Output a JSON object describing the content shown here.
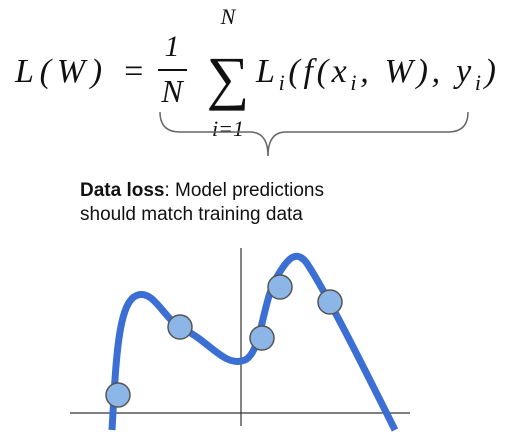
{
  "formula": {
    "lhs": "L(W) =",
    "numerator": "1",
    "denominator": "N",
    "sum_symbol": "∑",
    "sum_upper": "N",
    "sum_lower": "i=1",
    "rhs": [
      "L",
      "i",
      "(f(x",
      "i",
      ", W), y",
      "i",
      ")"
    ]
  },
  "annotation": {
    "bold": "Data loss",
    "line1": ": Model predictions",
    "line2": "should match training data"
  }
}
